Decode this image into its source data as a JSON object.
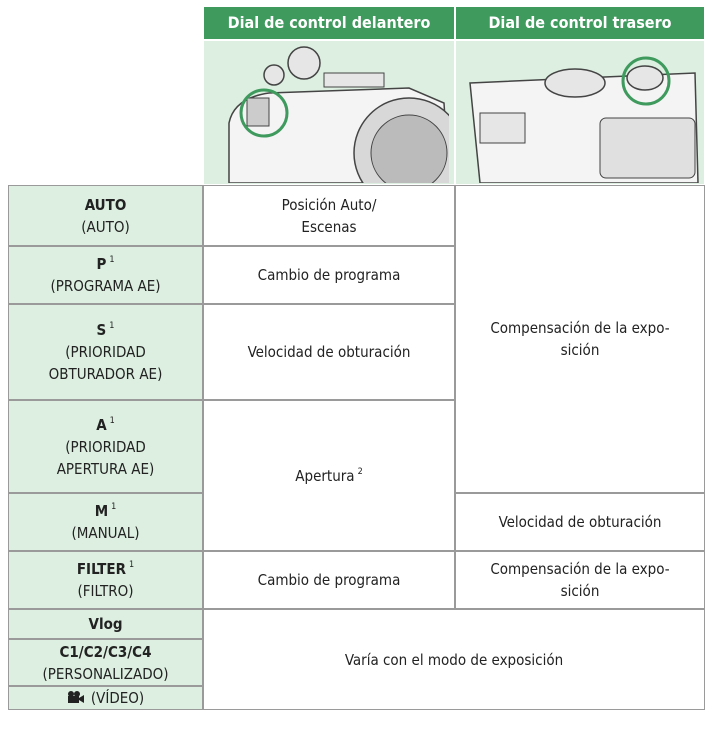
{
  "header": {
    "columns": [
      "Dial de control delantero",
      "Dial de control trasero"
    ]
  },
  "modes": [
    {
      "mode": "AUTO",
      "note": [
        "(AUTO)"
      ]
    },
    {
      "mode": "P",
      "footnote": "1",
      "note": [
        "(PROGRAMA AE)"
      ]
    },
    {
      "mode": "S",
      "footnote": "1",
      "note": [
        "(PRIORIDAD",
        "OBTURADOR AE)"
      ]
    },
    {
      "mode": "A",
      "footnote": "1",
      "note": [
        "(PRIORIDAD",
        "APERTURA AE)"
      ]
    },
    {
      "mode": "M",
      "footnote": "1",
      "note": [
        "(MANUAL)"
      ]
    },
    {
      "mode": "FILTER",
      "footnote": "1",
      "note": [
        "(FILTRO)"
      ]
    },
    {
      "mode": "Vlog"
    },
    {
      "mode": "C1/C2/C3/C4",
      "note": [
        "(PERSONALIZADO)"
      ]
    },
    {
      "note": [
        "(VÍDEO)"
      ]
    }
  ],
  "cells": [
    {
      "lines": [
        "Posición Auto/",
        "Escenas"
      ]
    },
    {
      "lines": [
        "Cambio de programa"
      ]
    },
    {
      "lines": [
        "Velocidad de obturación"
      ]
    },
    {
      "lines": [
        "Apertura"
      ],
      "footnote": "2"
    },
    {
      "lines": [
        "Cambio de programa"
      ]
    },
    {
      "lines": [
        "Varía con el modo de exposición"
      ]
    },
    {
      "lines": [
        "Compensación de la expo-",
        "sición"
      ]
    },
    {
      "lines": [
        "Velocidad de obturación"
      ]
    },
    {
      "lines": [
        "Compensación de la expo-",
        "sición"
      ]
    }
  ]
}
